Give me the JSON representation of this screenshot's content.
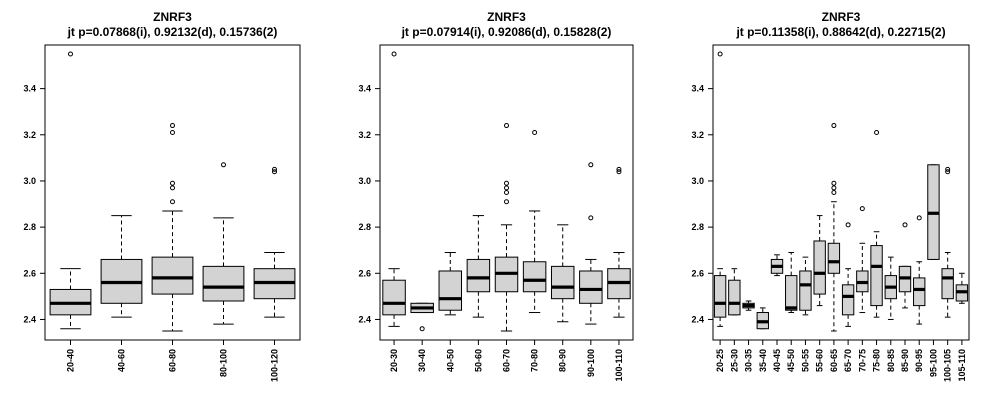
{
  "chart_data": [
    {
      "type": "boxplot",
      "title": "ZNRF3",
      "subtitle": "jt p=0.07868(i), 0.92132(d), 0.15736(2)",
      "xlabel": "",
      "ylabel": "",
      "ylim": [
        2.35,
        3.55
      ],
      "yticks": [
        "2.4",
        "2.6",
        "2.8",
        "3.0",
        "3.2",
        "3.4"
      ],
      "categories": [
        "20-40",
        "40-60",
        "60-80",
        "80-100",
        "100-120"
      ],
      "boxes": [
        {
          "lower_whisker": 2.36,
          "q1": 2.42,
          "median": 2.47,
          "q3": 2.53,
          "upper_whisker": 2.62,
          "outliers": [
            3.55
          ]
        },
        {
          "lower_whisker": 2.41,
          "q1": 2.47,
          "median": 2.56,
          "q3": 2.66,
          "upper_whisker": 2.85,
          "outliers": []
        },
        {
          "lower_whisker": 2.35,
          "q1": 2.51,
          "median": 2.58,
          "q3": 2.67,
          "upper_whisker": 2.87,
          "outliers": [
            2.91,
            2.97,
            2.99,
            3.21,
            3.24
          ]
        },
        {
          "lower_whisker": 2.38,
          "q1": 2.48,
          "median": 2.54,
          "q3": 2.63,
          "upper_whisker": 2.84,
          "outliers": [
            3.07
          ]
        },
        {
          "lower_whisker": 2.41,
          "q1": 2.49,
          "median": 2.56,
          "q3": 2.62,
          "upper_whisker": 2.69,
          "outliers": [
            3.04,
            3.05
          ]
        }
      ]
    },
    {
      "type": "boxplot",
      "title": "ZNRF3",
      "subtitle": "jt p=0.07914(i), 0.92086(d), 0.15828(2)",
      "xlabel": "",
      "ylabel": "",
      "ylim": [
        2.35,
        3.55
      ],
      "yticks": [
        "2.4",
        "2.6",
        "2.8",
        "3.0",
        "3.2",
        "3.4"
      ],
      "categories": [
        "20-30",
        "30-40",
        "40-50",
        "50-60",
        "60-70",
        "70-80",
        "80-90",
        "90-100",
        "100-110"
      ],
      "boxes": [
        {
          "lower_whisker": 2.37,
          "q1": 2.42,
          "median": 2.47,
          "q3": 2.57,
          "upper_whisker": 2.62,
          "outliers": [
            3.55
          ]
        },
        {
          "lower_whisker": 2.43,
          "q1": 2.43,
          "median": 2.45,
          "q3": 2.47,
          "upper_whisker": 2.47,
          "outliers": [
            2.36
          ]
        },
        {
          "lower_whisker": 2.42,
          "q1": 2.44,
          "median": 2.49,
          "q3": 2.61,
          "upper_whisker": 2.69,
          "outliers": []
        },
        {
          "lower_whisker": 2.41,
          "q1": 2.52,
          "median": 2.58,
          "q3": 2.66,
          "upper_whisker": 2.85,
          "outliers": []
        },
        {
          "lower_whisker": 2.35,
          "q1": 2.52,
          "median": 2.6,
          "q3": 2.67,
          "upper_whisker": 2.81,
          "outliers": [
            2.91,
            2.95,
            2.97,
            2.99,
            3.24
          ]
        },
        {
          "lower_whisker": 2.43,
          "q1": 2.52,
          "median": 2.57,
          "q3": 2.65,
          "upper_whisker": 2.87,
          "outliers": [
            3.21
          ]
        },
        {
          "lower_whisker": 2.39,
          "q1": 2.49,
          "median": 2.54,
          "q3": 2.63,
          "upper_whisker": 2.81,
          "outliers": []
        },
        {
          "lower_whisker": 2.38,
          "q1": 2.47,
          "median": 2.53,
          "q3": 2.61,
          "upper_whisker": 2.66,
          "outliers": [
            2.84,
            3.07
          ]
        },
        {
          "lower_whisker": 2.41,
          "q1": 2.49,
          "median": 2.56,
          "q3": 2.62,
          "upper_whisker": 2.69,
          "outliers": [
            3.04,
            3.05
          ]
        }
      ]
    },
    {
      "type": "boxplot",
      "title": "ZNRF3",
      "subtitle": "jt p=0.11358(i), 0.88642(d), 0.22715(2)",
      "xlabel": "",
      "ylabel": "",
      "ylim": [
        2.35,
        3.55
      ],
      "yticks": [
        "2.4",
        "2.6",
        "2.8",
        "3.0",
        "3.2",
        "3.4"
      ],
      "categories": [
        "20-25",
        "25-30",
        "30-35",
        "35-40",
        "40-45",
        "45-50",
        "50-55",
        "55-60",
        "60-65",
        "65-70",
        "70-75",
        "75-80",
        "80-85",
        "85-90",
        "90-95",
        "95-100",
        "100-105",
        "105-110"
      ],
      "boxes": [
        {
          "lower_whisker": 2.37,
          "q1": 2.41,
          "median": 2.47,
          "q3": 2.59,
          "upper_whisker": 2.62,
          "outliers": [
            3.55
          ]
        },
        {
          "lower_whisker": 2.42,
          "q1": 2.42,
          "median": 2.47,
          "q3": 2.57,
          "upper_whisker": 2.62,
          "outliers": []
        },
        {
          "lower_whisker": 2.44,
          "q1": 2.45,
          "median": 2.46,
          "q3": 2.47,
          "upper_whisker": 2.48,
          "outliers": []
        },
        {
          "lower_whisker": 2.36,
          "q1": 2.36,
          "median": 2.39,
          "q3": 2.43,
          "upper_whisker": 2.45,
          "outliers": []
        },
        {
          "lower_whisker": 2.59,
          "q1": 2.6,
          "median": 2.63,
          "q3": 2.66,
          "upper_whisker": 2.68,
          "outliers": []
        },
        {
          "lower_whisker": 2.43,
          "q1": 2.44,
          "median": 2.45,
          "q3": 2.59,
          "upper_whisker": 2.69,
          "outliers": []
        },
        {
          "lower_whisker": 2.42,
          "q1": 2.44,
          "median": 2.55,
          "q3": 2.61,
          "upper_whisker": 2.67,
          "outliers": []
        },
        {
          "lower_whisker": 2.46,
          "q1": 2.51,
          "median": 2.6,
          "q3": 2.74,
          "upper_whisker": 2.85,
          "outliers": []
        },
        {
          "lower_whisker": 2.35,
          "q1": 2.6,
          "median": 2.65,
          "q3": 2.73,
          "upper_whisker": 2.91,
          "outliers": [
            2.95,
            2.97,
            2.99,
            3.24
          ]
        },
        {
          "lower_whisker": 2.37,
          "q1": 2.42,
          "median": 2.5,
          "q3": 2.55,
          "upper_whisker": 2.62,
          "outliers": [
            2.81
          ]
        },
        {
          "lower_whisker": 2.43,
          "q1": 2.52,
          "median": 2.56,
          "q3": 2.61,
          "upper_whisker": 2.73,
          "outliers": [
            2.88
          ]
        },
        {
          "lower_whisker": 2.41,
          "q1": 2.46,
          "median": 2.63,
          "q3": 2.72,
          "upper_whisker": 2.78,
          "outliers": [
            3.21
          ]
        },
        {
          "lower_whisker": 2.4,
          "q1": 2.49,
          "median": 2.54,
          "q3": 2.59,
          "upper_whisker": 2.67,
          "outliers": []
        },
        {
          "lower_whisker": 2.45,
          "q1": 2.52,
          "median": 2.58,
          "q3": 2.63,
          "upper_whisker": 2.63,
          "outliers": [
            2.81
          ]
        },
        {
          "lower_whisker": 2.38,
          "q1": 2.46,
          "median": 2.53,
          "q3": 2.58,
          "upper_whisker": 2.65,
          "outliers": [
            2.84
          ]
        },
        {
          "lower_whisker": 2.66,
          "q1": 2.66,
          "median": 2.86,
          "q3": 3.07,
          "upper_whisker": 3.07,
          "outliers": []
        },
        {
          "lower_whisker": 2.41,
          "q1": 2.49,
          "median": 2.58,
          "q3": 2.62,
          "upper_whisker": 2.69,
          "outliers": [
            3.04,
            3.05
          ]
        },
        {
          "lower_whisker": 2.47,
          "q1": 2.48,
          "median": 2.52,
          "q3": 2.55,
          "upper_whisker": 2.6,
          "outliers": []
        }
      ]
    }
  ]
}
